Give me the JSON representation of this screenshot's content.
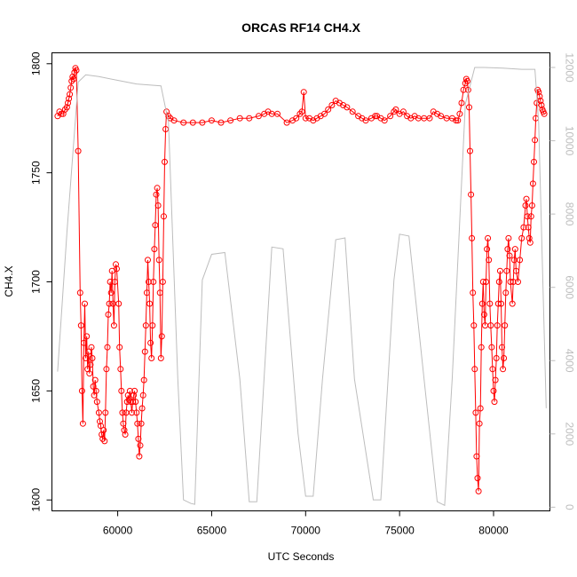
{
  "chart_data": {
    "type": "line",
    "title": "ORCAS RF14 CH4.X",
    "xlabel": "UTC Seconds",
    "ylabel": "CH4.X",
    "xlim": [
      56500,
      83000
    ],
    "ylim": [
      1595,
      1805
    ],
    "y2lim": [
      -100,
      12400
    ],
    "x_ticks": [
      60000,
      65000,
      70000,
      75000,
      80000
    ],
    "y_ticks": [
      1600,
      1650,
      1700,
      1750,
      1800
    ],
    "y2_ticks": [
      0,
      2000,
      4000,
      6000,
      8000,
      10000,
      12000
    ],
    "grid": false,
    "series": [
      {
        "color": "#ff0000",
        "marker": "open-circle",
        "axis": "left",
        "points": [
          [
            56800,
            1776
          ],
          [
            56900,
            1778
          ],
          [
            57000,
            1777
          ],
          [
            57100,
            1777
          ],
          [
            57200,
            1779
          ],
          [
            57300,
            1780
          ],
          [
            57350,
            1782
          ],
          [
            57400,
            1784
          ],
          [
            57450,
            1786
          ],
          [
            57500,
            1789
          ],
          [
            57550,
            1792
          ],
          [
            57600,
            1794
          ],
          [
            57650,
            1793
          ],
          [
            57700,
            1796
          ],
          [
            57750,
            1798
          ],
          [
            57800,
            1797
          ],
          [
            57900,
            1760
          ],
          [
            58000,
            1695
          ],
          [
            58050,
            1680
          ],
          [
            58100,
            1650
          ],
          [
            58150,
            1635
          ],
          [
            58200,
            1672
          ],
          [
            58250,
            1690
          ],
          [
            58300,
            1665
          ],
          [
            58350,
            1675
          ],
          [
            58400,
            1660
          ],
          [
            58450,
            1668
          ],
          [
            58500,
            1658
          ],
          [
            58550,
            1662
          ],
          [
            58600,
            1670
          ],
          [
            58650,
            1665
          ],
          [
            58700,
            1652
          ],
          [
            58750,
            1648
          ],
          [
            58800,
            1655
          ],
          [
            58850,
            1650
          ],
          [
            58900,
            1645
          ],
          [
            59000,
            1640
          ],
          [
            59050,
            1636
          ],
          [
            59100,
            1634
          ],
          [
            59150,
            1630
          ],
          [
            59200,
            1628
          ],
          [
            59250,
            1632
          ],
          [
            59300,
            1627
          ],
          [
            59350,
            1640
          ],
          [
            59400,
            1660
          ],
          [
            59450,
            1670
          ],
          [
            59500,
            1685
          ],
          [
            59550,
            1690
          ],
          [
            59600,
            1700
          ],
          [
            59650,
            1695
          ],
          [
            59700,
            1705
          ],
          [
            59750,
            1690
          ],
          [
            59800,
            1680
          ],
          [
            59850,
            1700
          ],
          [
            59900,
            1708
          ],
          [
            59950,
            1706
          ],
          [
            60050,
            1690
          ],
          [
            60100,
            1670
          ],
          [
            60150,
            1660
          ],
          [
            60200,
            1650
          ],
          [
            60250,
            1640
          ],
          [
            60300,
            1635
          ],
          [
            60350,
            1632
          ],
          [
            60400,
            1630
          ],
          [
            60450,
            1640
          ],
          [
            60500,
            1645
          ],
          [
            60550,
            1648
          ],
          [
            60600,
            1646
          ],
          [
            60650,
            1650
          ],
          [
            60700,
            1645
          ],
          [
            60750,
            1640
          ],
          [
            60800,
            1645
          ],
          [
            60850,
            1648
          ],
          [
            60900,
            1650
          ],
          [
            60950,
            1645
          ],
          [
            61000,
            1640
          ],
          [
            61050,
            1635
          ],
          [
            61100,
            1628
          ],
          [
            61150,
            1620
          ],
          [
            61200,
            1625
          ],
          [
            61250,
            1635
          ],
          [
            61300,
            1642
          ],
          [
            61350,
            1648
          ],
          [
            61400,
            1655
          ],
          [
            61450,
            1668
          ],
          [
            61500,
            1680
          ],
          [
            61550,
            1695
          ],
          [
            61600,
            1710
          ],
          [
            61650,
            1700
          ],
          [
            61700,
            1690
          ],
          [
            61750,
            1672
          ],
          [
            61800,
            1665
          ],
          [
            61850,
            1680
          ],
          [
            61900,
            1700
          ],
          [
            61950,
            1715
          ],
          [
            62000,
            1726
          ],
          [
            62050,
            1740
          ],
          [
            62100,
            1743
          ],
          [
            62150,
            1735
          ],
          [
            62200,
            1710
          ],
          [
            62250,
            1695
          ],
          [
            62300,
            1665
          ],
          [
            62350,
            1675
          ],
          [
            62400,
            1700
          ],
          [
            62450,
            1730
          ],
          [
            62500,
            1755
          ],
          [
            62550,
            1770
          ],
          [
            62600,
            1778
          ],
          [
            62700,
            1776
          ],
          [
            62800,
            1775
          ],
          [
            63000,
            1774
          ],
          [
            63500,
            1773
          ],
          [
            64000,
            1773
          ],
          [
            64500,
            1773
          ],
          [
            65000,
            1774
          ],
          [
            65500,
            1773
          ],
          [
            66000,
            1774
          ],
          [
            66500,
            1775
          ],
          [
            67000,
            1775
          ],
          [
            67500,
            1776
          ],
          [
            67800,
            1777
          ],
          [
            68000,
            1778
          ],
          [
            68200,
            1777
          ],
          [
            68500,
            1777
          ],
          [
            69000,
            1773
          ],
          [
            69300,
            1774
          ],
          [
            69500,
            1775
          ],
          [
            69700,
            1777
          ],
          [
            69800,
            1778
          ],
          [
            69900,
            1787
          ],
          [
            70000,
            1775
          ],
          [
            70200,
            1775
          ],
          [
            70400,
            1774
          ],
          [
            70600,
            1775
          ],
          [
            70800,
            1776
          ],
          [
            71000,
            1777
          ],
          [
            71200,
            1779
          ],
          [
            71400,
            1781
          ],
          [
            71600,
            1783
          ],
          [
            71800,
            1782
          ],
          [
            72000,
            1781
          ],
          [
            72200,
            1780
          ],
          [
            72500,
            1778
          ],
          [
            72800,
            1776
          ],
          [
            73000,
            1775
          ],
          [
            73200,
            1774
          ],
          [
            73500,
            1775
          ],
          [
            73700,
            1776
          ],
          [
            73800,
            1776
          ],
          [
            74000,
            1775
          ],
          [
            74200,
            1774
          ],
          [
            74500,
            1776
          ],
          [
            74700,
            1778
          ],
          [
            74800,
            1779
          ],
          [
            75000,
            1777
          ],
          [
            75200,
            1778
          ],
          [
            75400,
            1776
          ],
          [
            75600,
            1775
          ],
          [
            75800,
            1776
          ],
          [
            76000,
            1775
          ],
          [
            76300,
            1775
          ],
          [
            76600,
            1775
          ],
          [
            76800,
            1778
          ],
          [
            77000,
            1777
          ],
          [
            77200,
            1776
          ],
          [
            77500,
            1775
          ],
          [
            77800,
            1775
          ],
          [
            78000,
            1774
          ],
          [
            78100,
            1774
          ],
          [
            78200,
            1777
          ],
          [
            78300,
            1782
          ],
          [
            78400,
            1788
          ],
          [
            78500,
            1791
          ],
          [
            78550,
            1793
          ],
          [
            78600,
            1792
          ],
          [
            78650,
            1788
          ],
          [
            78700,
            1780
          ],
          [
            78750,
            1760
          ],
          [
            78800,
            1740
          ],
          [
            78850,
            1720
          ],
          [
            78900,
            1695
          ],
          [
            78950,
            1680
          ],
          [
            79000,
            1660
          ],
          [
            79050,
            1640
          ],
          [
            79100,
            1620
          ],
          [
            79150,
            1610
          ],
          [
            79200,
            1604
          ],
          [
            79250,
            1635
          ],
          [
            79300,
            1642
          ],
          [
            79350,
            1670
          ],
          [
            79400,
            1690
          ],
          [
            79450,
            1700
          ],
          [
            79500,
            1685
          ],
          [
            79550,
            1680
          ],
          [
            79600,
            1700
          ],
          [
            79650,
            1715
          ],
          [
            79700,
            1720
          ],
          [
            79750,
            1710
          ],
          [
            79800,
            1690
          ],
          [
            79850,
            1680
          ],
          [
            79900,
            1670
          ],
          [
            79950,
            1660
          ],
          [
            80000,
            1650
          ],
          [
            80050,
            1645
          ],
          [
            80100,
            1655
          ],
          [
            80150,
            1665
          ],
          [
            80200,
            1680
          ],
          [
            80250,
            1690
          ],
          [
            80300,
            1700
          ],
          [
            80350,
            1705
          ],
          [
            80400,
            1690
          ],
          [
            80450,
            1670
          ],
          [
            80500,
            1660
          ],
          [
            80550,
            1665
          ],
          [
            80600,
            1680
          ],
          [
            80650,
            1695
          ],
          [
            80700,
            1705
          ],
          [
            80750,
            1715
          ],
          [
            80800,
            1720
          ],
          [
            80850,
            1712
          ],
          [
            80900,
            1700
          ],
          [
            81000,
            1690
          ],
          [
            81050,
            1700
          ],
          [
            81100,
            1710
          ],
          [
            81150,
            1715
          ],
          [
            81200,
            1705
          ],
          [
            81300,
            1700
          ],
          [
            81400,
            1710
          ],
          [
            81500,
            1720
          ],
          [
            81600,
            1725
          ],
          [
            81700,
            1735
          ],
          [
            81750,
            1738
          ],
          [
            81800,
            1730
          ],
          [
            81850,
            1725
          ],
          [
            81900,
            1720
          ],
          [
            81950,
            1718
          ],
          [
            82000,
            1730
          ],
          [
            82050,
            1735
          ],
          [
            82100,
            1745
          ],
          [
            82150,
            1755
          ],
          [
            82200,
            1765
          ],
          [
            82250,
            1775
          ],
          [
            82300,
            1782
          ],
          [
            82350,
            1788
          ],
          [
            82400,
            1787
          ],
          [
            82450,
            1785
          ],
          [
            82500,
            1783
          ],
          [
            82550,
            1781
          ],
          [
            82600,
            1779
          ],
          [
            82650,
            1778
          ],
          [
            82700,
            1777
          ]
        ]
      },
      {
        "color": "#bdbdbd",
        "marker": "none",
        "axis": "right",
        "points": [
          [
            56800,
            3700
          ],
          [
            57300,
            7500
          ],
          [
            57900,
            11600
          ],
          [
            58300,
            11800
          ],
          [
            59000,
            11750
          ],
          [
            60000,
            11650
          ],
          [
            61000,
            11550
          ],
          [
            62300,
            11500
          ],
          [
            62700,
            10500
          ],
          [
            63200,
            3500
          ],
          [
            63500,
            200
          ],
          [
            63900,
            100
          ],
          [
            64100,
            80
          ],
          [
            64500,
            6200
          ],
          [
            65000,
            6900
          ],
          [
            65700,
            6950
          ],
          [
            66500,
            3500
          ],
          [
            67000,
            150
          ],
          [
            67400,
            150
          ],
          [
            68200,
            7100
          ],
          [
            68800,
            7050
          ],
          [
            69600,
            2000
          ],
          [
            70000,
            300
          ],
          [
            70400,
            300
          ],
          [
            70900,
            3500
          ],
          [
            71600,
            7300
          ],
          [
            72100,
            7350
          ],
          [
            72600,
            3500
          ],
          [
            73600,
            200
          ],
          [
            74000,
            200
          ],
          [
            74700,
            6200
          ],
          [
            75000,
            7450
          ],
          [
            75500,
            7400
          ],
          [
            76300,
            3500
          ],
          [
            77000,
            150
          ],
          [
            77400,
            50
          ],
          [
            77800,
            3500
          ],
          [
            78500,
            11000
          ],
          [
            79000,
            12000
          ],
          [
            79500,
            12000
          ],
          [
            80500,
            11980
          ],
          [
            81500,
            11950
          ],
          [
            82200,
            11950
          ],
          [
            82400,
            10500
          ],
          [
            82800,
            2700
          ]
        ]
      }
    ]
  }
}
